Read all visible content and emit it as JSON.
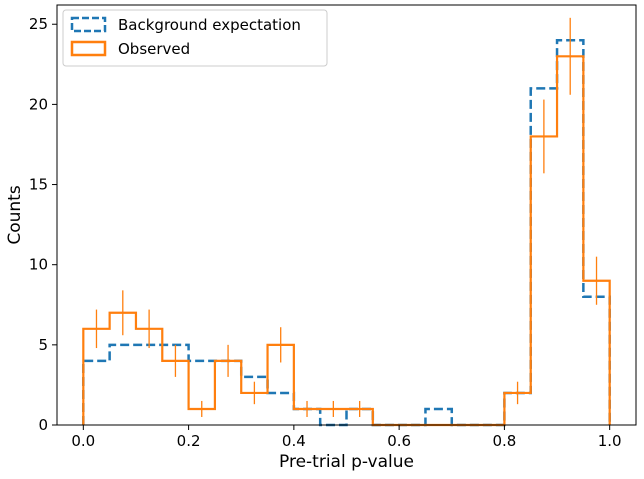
{
  "chart_data": {
    "type": "histogram",
    "title": "",
    "xlabel": "Pre-trial p-value",
    "ylabel": "Counts",
    "xlim": [
      -0.05,
      1.05
    ],
    "ylim": [
      0,
      26.2
    ],
    "xticks": [
      0.0,
      0.2,
      0.4,
      0.6,
      0.8,
      1.0
    ],
    "xtick_labels": [
      "0.0",
      "0.2",
      "0.4",
      "0.6",
      "0.8",
      "1.0"
    ],
    "yticks": [
      0,
      5,
      10,
      15,
      20,
      25
    ],
    "ytick_labels": [
      "0",
      "5",
      "10",
      "15",
      "20",
      "25"
    ],
    "bin_edges": [
      0.0,
      0.05,
      0.1,
      0.15,
      0.2,
      0.25,
      0.3,
      0.35,
      0.4,
      0.45,
      0.5,
      0.55,
      0.6,
      0.65,
      0.7,
      0.75,
      0.8,
      0.85,
      0.9,
      0.95,
      1.0
    ],
    "series": [
      {
        "name": "Background expectation",
        "style": "dashed-step",
        "color": "#1f77b4",
        "values": [
          4,
          5,
          5,
          5,
          4,
          4,
          3,
          2,
          1,
          0,
          1,
          0,
          0,
          1,
          0,
          0,
          2,
          21,
          24,
          8
        ]
      },
      {
        "name": "Observed",
        "style": "solid-step",
        "color": "#ff7f0e",
        "values": [
          6,
          7,
          6,
          4,
          1,
          4,
          2,
          5,
          1,
          1,
          1,
          0,
          0,
          0,
          0,
          0,
          2,
          18,
          23,
          9
        ],
        "errors": [
          1.2,
          1.4,
          1.2,
          1.0,
          0.5,
          1.0,
          0.7,
          1.1,
          0.5,
          0.5,
          0.5,
          0,
          0,
          0,
          0,
          0,
          0.7,
          2.3,
          2.4,
          1.5
        ]
      }
    ],
    "legend_position": "top-left"
  }
}
